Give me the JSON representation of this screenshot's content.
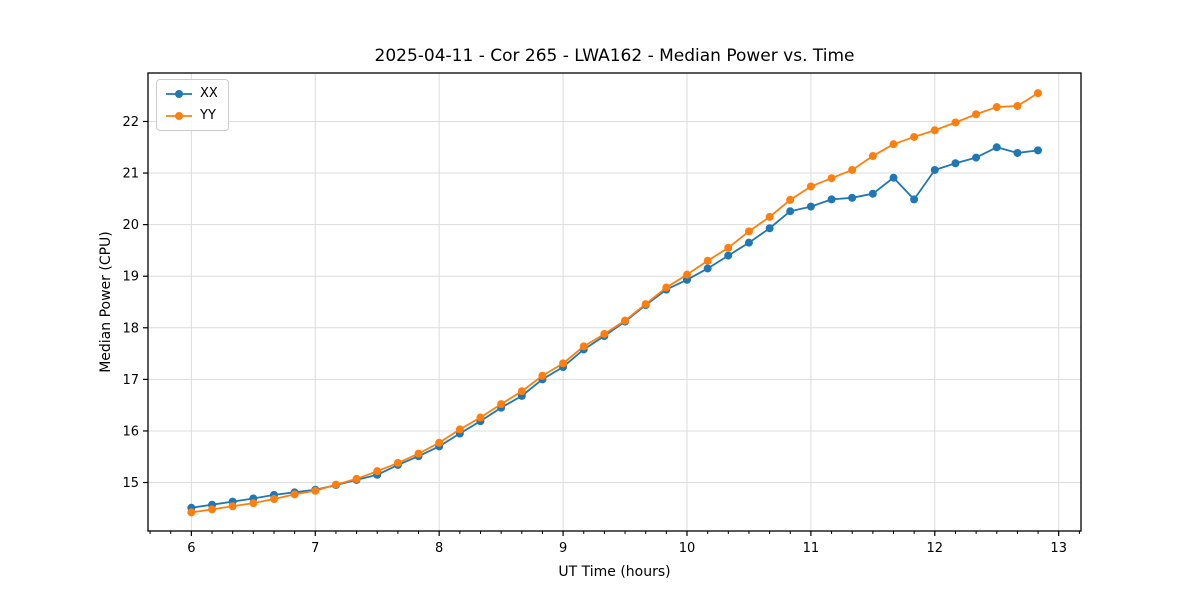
{
  "title": "2025-04-11 - Cor 265 - LWA162 - Median Power vs. Time",
  "legend": {
    "items": [
      {
        "label": "XX",
        "color": "#1f77b4"
      },
      {
        "label": "YY",
        "color": "#ff7f0e"
      }
    ]
  },
  "colors": {
    "grid": "#dcdcdc",
    "spine": "#000000",
    "background": "#ffffff",
    "series_xx": "#1f77b4",
    "series_yy": "#ff7f0e"
  },
  "chart_data": {
    "type": "line",
    "title": "2025-04-11 - Cor 265 - LWA162 - Median Power vs. Time",
    "xlabel": "UT Time (hours)",
    "ylabel": "Median Power (CPU)",
    "xlim": [
      5.65,
      13.18
    ],
    "ylim": [
      14.06,
      22.94
    ],
    "x_ticks": [
      6,
      7,
      8,
      9,
      10,
      11,
      12,
      13
    ],
    "y_ticks": [
      15,
      16,
      17,
      18,
      19,
      20,
      21,
      22
    ],
    "x_minor_tick_step": 0.16667,
    "grid": true,
    "legend_position": "upper left",
    "marker": "o",
    "x": [
      6.0,
      6.167,
      6.333,
      6.5,
      6.667,
      6.833,
      7.0,
      7.167,
      7.333,
      7.5,
      7.667,
      7.833,
      8.0,
      8.167,
      8.333,
      8.5,
      8.667,
      8.833,
      9.0,
      9.167,
      9.333,
      9.5,
      9.667,
      9.833,
      10.0,
      10.167,
      10.333,
      10.5,
      10.667,
      10.833,
      11.0,
      11.167,
      11.333,
      11.5,
      11.667,
      11.833,
      12.0,
      12.167,
      12.333,
      12.5,
      12.667,
      12.833
    ],
    "series": [
      {
        "name": "XX",
        "color": "#1f77b4",
        "values": [
          14.51,
          14.57,
          14.63,
          14.69,
          14.76,
          14.81,
          14.86,
          14.95,
          15.05,
          15.15,
          15.34,
          15.51,
          15.7,
          15.95,
          16.19,
          16.45,
          16.68,
          17.0,
          17.24,
          17.58,
          17.84,
          18.12,
          18.44,
          18.74,
          18.93,
          19.15,
          19.4,
          19.65,
          19.93,
          20.26,
          20.35,
          20.49,
          20.52,
          20.6,
          20.91,
          20.49,
          21.06,
          21.19,
          21.3,
          21.5,
          21.39,
          21.44
        ]
      },
      {
        "name": "YY",
        "color": "#ff7f0e",
        "values": [
          14.42,
          14.48,
          14.54,
          14.6,
          14.68,
          14.77,
          14.84,
          14.96,
          15.07,
          15.22,
          15.38,
          15.56,
          15.77,
          16.03,
          16.26,
          16.52,
          16.77,
          17.07,
          17.31,
          17.64,
          17.88,
          18.14,
          18.46,
          18.78,
          19.03,
          19.3,
          19.55,
          19.87,
          20.15,
          20.48,
          20.74,
          20.9,
          21.06,
          21.33,
          21.56,
          21.7,
          21.83,
          21.98,
          22.14,
          22.28,
          22.3,
          22.55
        ]
      }
    ]
  }
}
